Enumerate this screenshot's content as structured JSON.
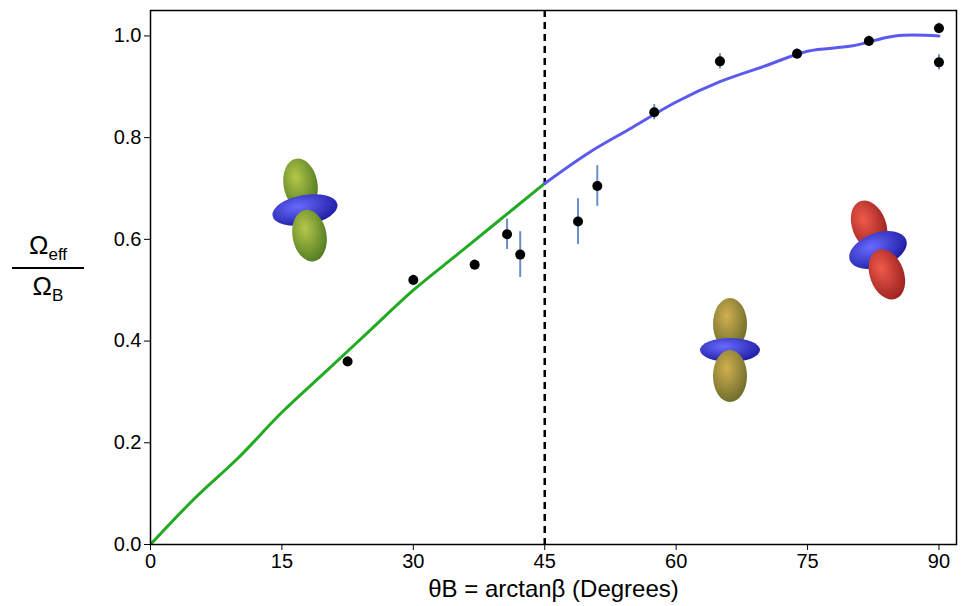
{
  "chart_data": {
    "type": "scatter",
    "x_label": "θB = arctanβ (Degrees)",
    "y_label": {
      "numerator": "Ωeff",
      "denominator": "ΩB"
    },
    "xlim": [
      0,
      92
    ],
    "ylim": [
      0,
      1.05
    ],
    "xticks": [
      0,
      15,
      30,
      45,
      60,
      75,
      90
    ],
    "yticks": [
      {
        "value": 0,
        "label": "0.0"
      },
      {
        "value": 0.2,
        "label": "0.2"
      },
      {
        "value": 0.4,
        "label": "0.4"
      },
      {
        "value": 0.6,
        "label": "0.6"
      },
      {
        "value": 0.8,
        "label": "0.8"
      },
      {
        "value": 1.0,
        "label": "1.0"
      }
    ],
    "vertical_line_x": 45,
    "series": [
      {
        "type": "line",
        "color": "#22aa22",
        "line_style": "solid",
        "x": [
          0,
          5,
          10,
          15,
          20,
          25,
          30,
          35,
          40,
          45
        ],
        "values": [
          0,
          0.09,
          0.17,
          0.26,
          0.34,
          0.42,
          0.5,
          0.57,
          0.64,
          0.71
        ]
      },
      {
        "type": "line",
        "color": "#5a5aee",
        "line_style": "solid",
        "x": [
          45,
          50,
          55,
          60,
          65,
          70,
          75,
          80,
          85,
          90
        ],
        "values": [
          0.71,
          0.77,
          0.82,
          0.87,
          0.91,
          0.94,
          0.97,
          0.98,
          1.0,
          1.0
        ]
      },
      {
        "type": "scatter",
        "color": "#000000",
        "marker": "circle",
        "x": [
          22.5,
          30,
          37,
          40.7,
          42.2,
          48.8,
          51,
          57.5,
          65,
          73.8,
          82,
          90,
          90
        ],
        "values": [
          0.36,
          0.52,
          0.55,
          0.61,
          0.57,
          0.635,
          0.705,
          0.85,
          0.95,
          0.965,
          0.99,
          1.015,
          0.948
        ],
        "errors": [
          0.01,
          0.01,
          0.01,
          0.03,
          0.045,
          0.045,
          0.04,
          0.015,
          0.015,
          0.01,
          0.01,
          0.01,
          0.015
        ]
      }
    ]
  }
}
